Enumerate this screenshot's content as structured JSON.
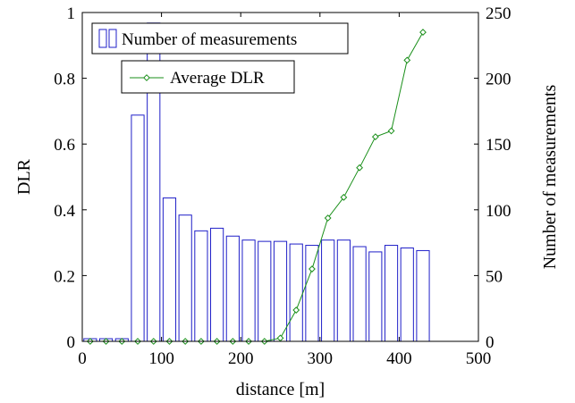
{
  "chart_data": {
    "type": "bar+line",
    "xlabel": "distance [m]",
    "ylabel_left": "DLR",
    "ylabel_right": "Number of measurements",
    "xlim": [
      0,
      500
    ],
    "ylim_left": [
      0,
      1
    ],
    "ylim_right": [
      0,
      250
    ],
    "xticks": [
      "0",
      "100",
      "200",
      "300",
      "400",
      "500"
    ],
    "yticks_left": [
      "0",
      "0.2",
      "0.4",
      "0.6",
      "0.8",
      "1"
    ],
    "yticks_right": [
      "0",
      "50",
      "100",
      "150",
      "200",
      "250"
    ],
    "grid": false,
    "colors": {
      "bars": "#1f1fc8",
      "line": "#1a8f1a"
    },
    "bar_width": 16,
    "series": [
      {
        "name": "Number of measurements",
        "kind": "bar",
        "axis": "right",
        "x": [
          10,
          30,
          50,
          70,
          90,
          110,
          130,
          150,
          170,
          190,
          210,
          230,
          250,
          270,
          290,
          310,
          330,
          350,
          370,
          390,
          410,
          430
        ],
        "values": [
          2,
          2,
          2,
          172,
          242,
          109,
          96,
          84,
          86,
          80,
          77,
          76,
          76,
          74,
          73,
          77,
          77,
          72,
          68,
          73,
          71,
          69
        ]
      },
      {
        "name": "Average DLR",
        "kind": "line",
        "axis": "left",
        "marker": "diamond",
        "x": [
          10,
          30,
          50,
          70,
          90,
          110,
          130,
          150,
          170,
          190,
          210,
          230,
          250,
          270,
          290,
          310,
          330,
          350,
          370,
          390,
          410,
          430
        ],
        "values": [
          0,
          0,
          0,
          0,
          0,
          0,
          0,
          0,
          0,
          0,
          0,
          0,
          0.01,
          0.095,
          0.22,
          0.375,
          0.438,
          0.528,
          0.622,
          0.64,
          0.855,
          0.94
        ]
      }
    ],
    "legend": [
      {
        "label": "Number of measurements",
        "position": "top-left"
      },
      {
        "label": "Average DLR",
        "position": "top-left"
      }
    ]
  }
}
